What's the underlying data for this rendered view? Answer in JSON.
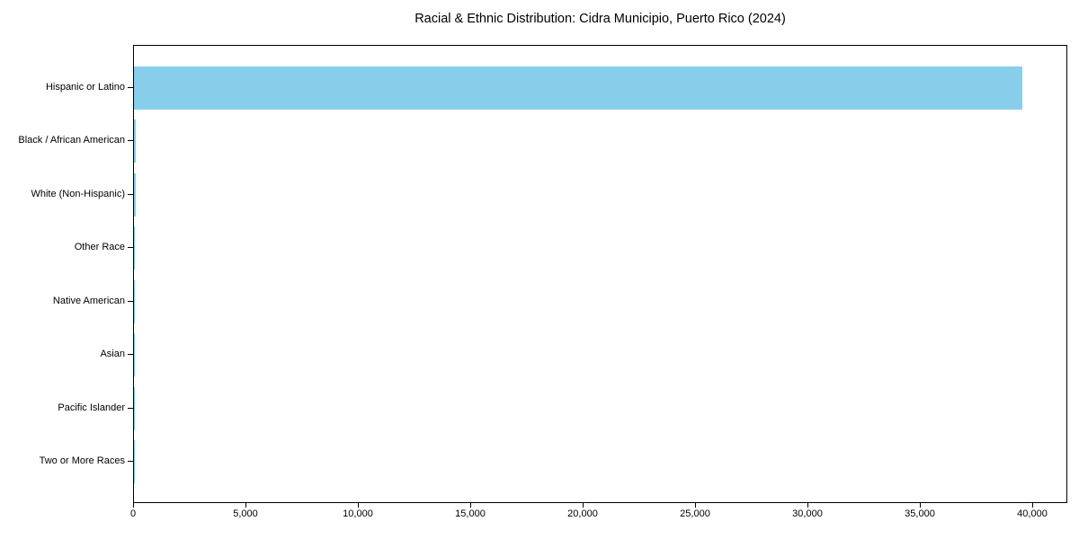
{
  "title": "Racial & Ethnic Distribution: Cidra Municipio, Puerto Rico (2024)",
  "chart_data": {
    "type": "bar",
    "orientation": "horizontal",
    "title": "Racial & Ethnic Distribution: Cidra Municipio, Puerto Rico (2024)",
    "xlabel": "",
    "ylabel": "",
    "categories": [
      "Hispanic or Latino",
      "Black / African American",
      "White (Non-Hispanic)",
      "Other Race",
      "Native American",
      "Asian",
      "Pacific Islander",
      "Two or More Races"
    ],
    "values": [
      39500,
      60,
      60,
      25,
      10,
      10,
      5,
      20
    ],
    "bar_color": "#87CEEB",
    "xlim": [
      0,
      41560
    ],
    "xticks": [
      0,
      5000,
      10000,
      15000,
      20000,
      25000,
      30000,
      35000,
      40000
    ],
    "xtick_labels": [
      "0",
      "5,000",
      "10,000",
      "15,000",
      "20,000",
      "25,000",
      "30,000",
      "35,000",
      "40,000"
    ],
    "grid": false,
    "legend": "none"
  }
}
